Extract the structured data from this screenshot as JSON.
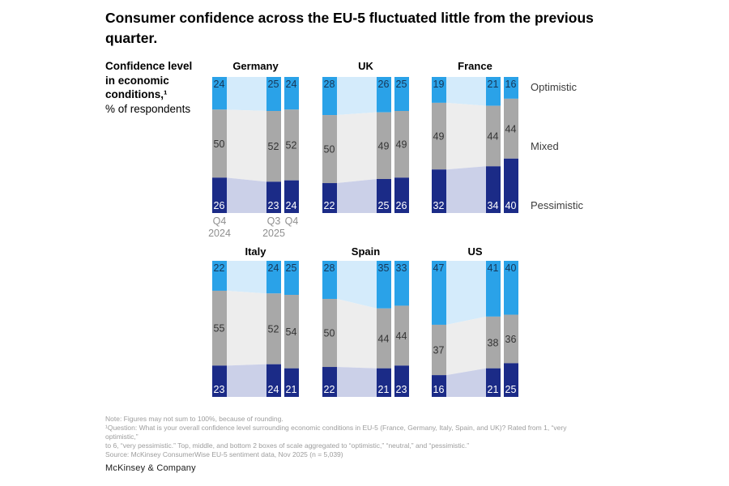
{
  "header": {
    "title": "Consumer confidence across the EU-5 fluctuated little from the previous quarter."
  },
  "sidebar": {
    "bold_lines": [
      "Confidence level",
      "in economic",
      "conditions,¹"
    ],
    "unit_line": "% of respondents"
  },
  "legend": {
    "items": [
      "Optimistic",
      "Mixed",
      "Pessimistic"
    ]
  },
  "colors": {
    "optimistic": "#2aa2e8",
    "mixed": "#a8a8a8",
    "pessimistic": "#1b2b87",
    "flow_optimistic": "#d4ebfb",
    "flow_mixed": "#ededed",
    "flow_pessimistic": "#cbd0e8",
    "value_on_optimistic": "#173757",
    "value_on_mixed": "#333333",
    "value_on_pessimistic": "#ffffff",
    "axis_text": "#8f8f8f"
  },
  "chart_data": {
    "type": "bar",
    "subtype": "stacked-percent-small-multiples-with-flows",
    "title": "Confidence level in economic conditions, % of respondents",
    "unit": "% of respondents",
    "ylim": [
      0,
      100
    ],
    "grid": false,
    "legend_position": "right-of-france-panel",
    "segments": [
      "Optimistic",
      "Mixed",
      "Pessimistic"
    ],
    "x": [
      "Q4 2024",
      "Q3 2025",
      "Q4 2025"
    ],
    "x_tick_lines": [
      [
        "Q4",
        "2024"
      ],
      [
        "Q3",
        "2025"
      ],
      [
        "Q4"
      ]
    ],
    "groups": [
      {
        "name": "Germany",
        "series": [
          {
            "name": "Optimistic",
            "values": [
              24,
              25,
              24
            ]
          },
          {
            "name": "Mixed",
            "values": [
              50,
              52,
              52
            ]
          },
          {
            "name": "Pessimistic",
            "values": [
              26,
              23,
              24
            ]
          }
        ]
      },
      {
        "name": "UK",
        "series": [
          {
            "name": "Optimistic",
            "values": [
              28,
              26,
              25
            ]
          },
          {
            "name": "Mixed",
            "values": [
              50,
              49,
              49
            ]
          },
          {
            "name": "Pessimistic",
            "values": [
              22,
              25,
              26
            ]
          }
        ]
      },
      {
        "name": "France",
        "series": [
          {
            "name": "Optimistic",
            "values": [
              19,
              21,
              16
            ]
          },
          {
            "name": "Mixed",
            "values": [
              49,
              44,
              44
            ]
          },
          {
            "name": "Pessimistic",
            "values": [
              32,
              34,
              40
            ]
          }
        ]
      },
      {
        "name": "Italy",
        "series": [
          {
            "name": "Optimistic",
            "values": [
              22,
              24,
              25
            ]
          },
          {
            "name": "Mixed",
            "values": [
              55,
              52,
              54
            ]
          },
          {
            "name": "Pessimistic",
            "values": [
              23,
              24,
              21
            ]
          }
        ]
      },
      {
        "name": "Spain",
        "series": [
          {
            "name": "Optimistic",
            "values": [
              28,
              35,
              33
            ]
          },
          {
            "name": "Mixed",
            "values": [
              50,
              44,
              44
            ]
          },
          {
            "name": "Pessimistic",
            "values": [
              22,
              21,
              23
            ]
          }
        ]
      },
      {
        "name": "US",
        "series": [
          {
            "name": "Optimistic",
            "values": [
              47,
              41,
              40
            ]
          },
          {
            "name": "Mixed",
            "values": [
              37,
              38,
              36
            ]
          },
          {
            "name": "Pessimistic",
            "values": [
              16,
              21,
              25
            ]
          }
        ]
      }
    ]
  },
  "footnotes": {
    "line1": "Note: Figures may not sum to 100%, because of rounding.",
    "line2": "¹Question: What is your overall confidence level surrounding economic conditions in EU-5 (France, Germany, Italy, Spain, and UK)? Rated from 1, “very optimistic,”",
    "line3": "to 6, “very pessimistic.” Top, middle, and bottom 2 boxes of scale aggregated to “optimistic,” “neutral,” and “pessimistic.”",
    "line4": "Source: McKinsey ConsumerWise EU-5 sentiment data, Nov 2025 (n = 5,039)"
  },
  "footer": {
    "brand": "McKinsey & Company"
  }
}
